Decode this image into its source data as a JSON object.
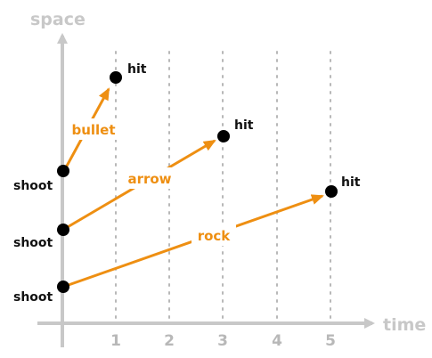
{
  "colors": {
    "axis": "#c8c8c8",
    "grid_dots": "#b8b8b8",
    "trajectory": "#ee8f12",
    "points": "#000000"
  },
  "axes": {
    "y_label": "space",
    "x_label": "time",
    "x_ticks": [
      "1",
      "2",
      "3",
      "4",
      "5"
    ]
  },
  "events": [
    {
      "start_label": "shoot",
      "end_label": "hit",
      "projectile": "bullet",
      "end_time": 1
    },
    {
      "start_label": "shoot",
      "end_label": "hit",
      "projectile": "arrow",
      "end_time": 3
    },
    {
      "start_label": "shoot",
      "end_label": "hit",
      "projectile": "rock",
      "end_time": 5
    }
  ]
}
